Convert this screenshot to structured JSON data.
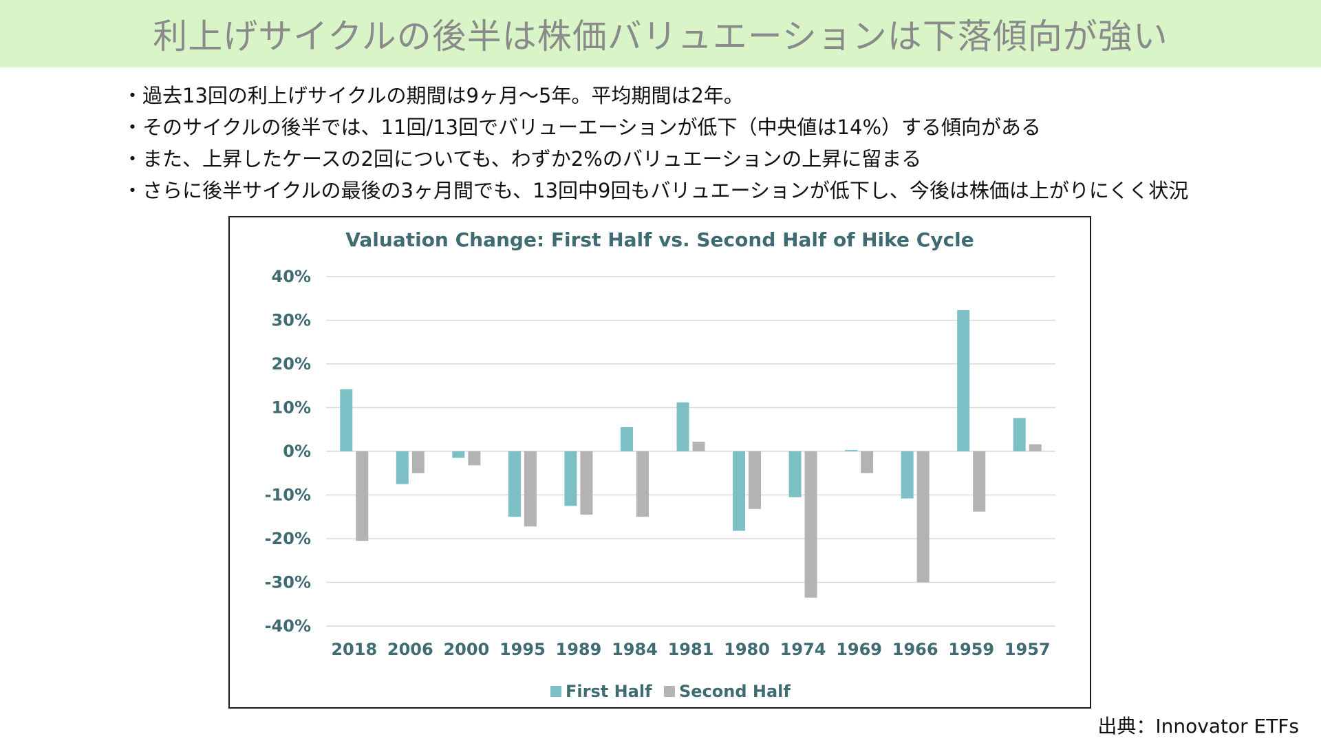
{
  "header": {
    "title": "利上げサイクルの後半は株価バリュエーションは下落傾向が強い"
  },
  "bullets": [
    "・過去13回の利上げサイクルの期間は9ヶ月〜5年。平均期間は2年。",
    "・そのサイクルの後半では、11回/13回でバリューエーションが低下（中央値は14%）する傾向がある",
    "・また、上昇したケースの2回についても、わずか2%のバリュエーションの上昇に留まる",
    "・さらに後半サイクルの最後の3ヶ月間でも、13回中9回もバリュエーションが低下し、今後は株価は上がりにくく状況"
  ],
  "source": "出典：Innovator ETFs",
  "chart_data": {
    "type": "bar",
    "title": "Valuation Change: First Half vs. Second Half of Hike Cycle",
    "xlabel": "",
    "ylabel": "",
    "ylim": [
      -40,
      40
    ],
    "yticks": [
      40,
      30,
      20,
      10,
      0,
      -10,
      -20,
      -30,
      -40
    ],
    "ytick_labels": [
      "40%",
      "30%",
      "20%",
      "10%",
      "0%",
      "-10%",
      "-20%",
      "-30%",
      "-40%"
    ],
    "grid": true,
    "legend_position": "bottom-center",
    "categories": [
      "2018",
      "2006",
      "2000",
      "1995",
      "1989",
      "1984",
      "1981",
      "1980",
      "1974",
      "1969",
      "1966",
      "1959",
      "1957"
    ],
    "series": [
      {
        "name": "First Half",
        "color": "#7cbfc5",
        "values": [
          14.2,
          -7.5,
          -1.5,
          -15,
          -12.5,
          5.5,
          11.2,
          -18.2,
          -10.5,
          0.3,
          -10.8,
          32.3,
          7.6
        ]
      },
      {
        "name": "Second Half",
        "color": "#b3b3b3",
        "values": [
          -20.5,
          -5,
          -3.2,
          -17.2,
          -14.5,
          -15,
          2.2,
          -13.2,
          -33.5,
          -5,
          -30,
          -13.8,
          1.6
        ]
      }
    ]
  }
}
